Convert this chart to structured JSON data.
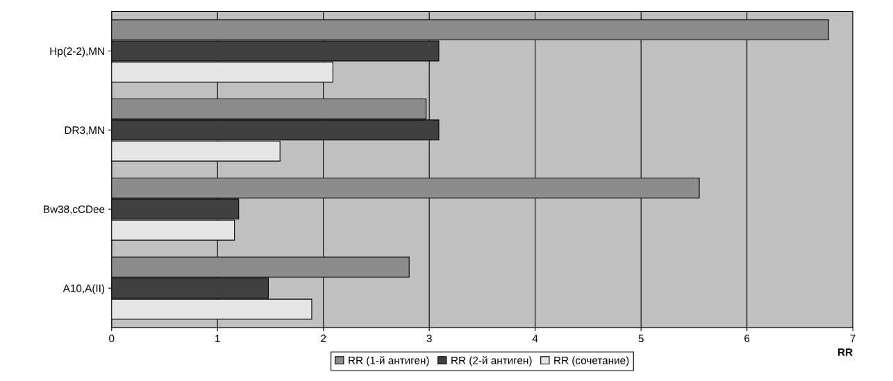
{
  "chart_data": {
    "type": "bar",
    "orientation": "horizontal",
    "xlabel": "RR",
    "categories": [
      "Hp(2-2),MN",
      "DR3,MN",
      "Bw38,cCDee",
      "A10,A(II)"
    ],
    "series": [
      {
        "name": "RR (1-й антиген)",
        "color": "#8c8c8c",
        "values": [
          6.77,
          2.97,
          5.55,
          2.81
        ]
      },
      {
        "name": "RR (2-й антиген)",
        "color": "#404040",
        "values": [
          3.09,
          3.09,
          1.2,
          1.48
        ]
      },
      {
        "name": "RR (сочетание)",
        "color": "#e6e6e6",
        "values": [
          2.09,
          1.59,
          1.16,
          1.89
        ]
      }
    ],
    "xlim": [
      0,
      7
    ],
    "xticks": [
      0,
      1,
      2,
      3,
      4,
      5,
      6,
      7
    ],
    "grid": "x",
    "legend": "bottom"
  }
}
